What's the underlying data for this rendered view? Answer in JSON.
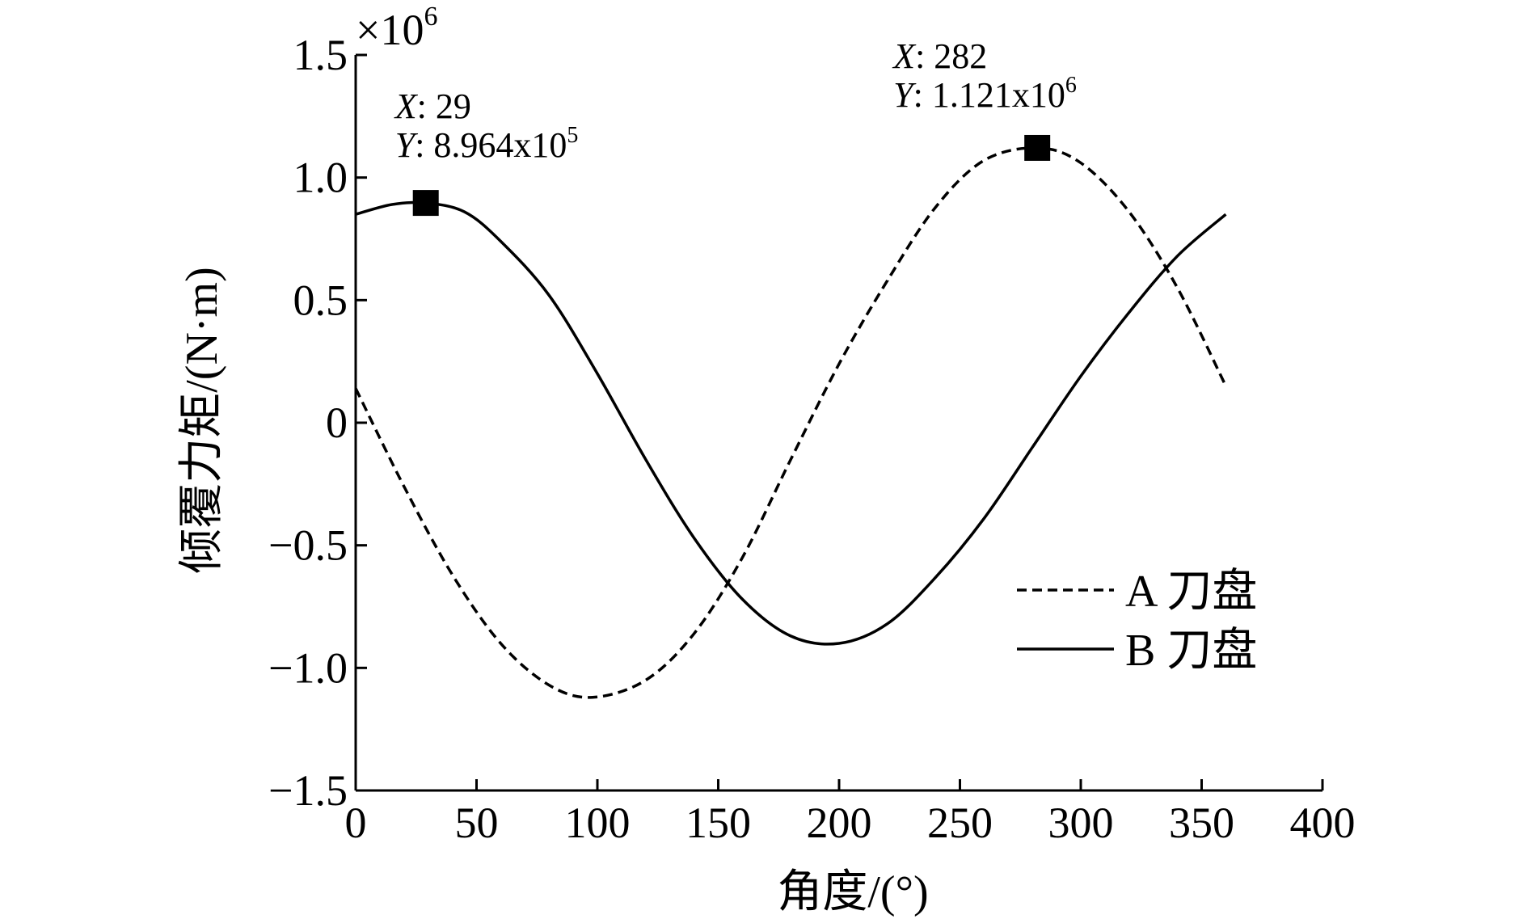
{
  "chart_data": {
    "type": "line",
    "xlabel": "角度/(°)",
    "ylabel": "倾覆力矩/(N·m)",
    "xlim": [
      0,
      400
    ],
    "ylim": [
      -1.5,
      1.5
    ],
    "y_multiplier": {
      "base": "×10",
      "exp": "6"
    },
    "x_ticks": [
      0,
      50,
      100,
      150,
      200,
      250,
      300,
      350,
      400
    ],
    "y_ticks": [
      -1.5,
      -1.0,
      -0.5,
      0,
      0.5,
      1.0,
      1.5
    ],
    "x_tick_labels": [
      "0",
      "50",
      "100",
      "150",
      "200",
      "250",
      "300",
      "350",
      "400"
    ],
    "y_tick_labels": [
      "−1.5",
      "−1.0",
      "−0.5",
      "0",
      "0.5",
      "1.0",
      "1.5"
    ],
    "grid": false,
    "legend_position": "right",
    "series": [
      {
        "name": "A 刀盘",
        "style": "dashed",
        "color": "#000000",
        "x": [
          0,
          20,
          40,
          60,
          80,
          98,
          120,
          140,
          160,
          180,
          200,
          220,
          240,
          260,
          282,
          300,
          320,
          340,
          360
        ],
        "y": [
          0.14,
          -0.26,
          -0.62,
          -0.9,
          -1.07,
          -1.12,
          -1.05,
          -0.86,
          -0.55,
          -0.15,
          0.24,
          0.58,
          0.88,
          1.07,
          1.121,
          1.06,
          0.86,
          0.55,
          0.15
        ]
      },
      {
        "name": "B 刀盘",
        "style": "solid",
        "color": "#000000",
        "x": [
          0,
          15,
          29,
          45,
          60,
          80,
          100,
          120,
          140,
          160,
          180,
          200,
          220,
          240,
          260,
          280,
          300,
          320,
          340,
          360
        ],
        "y": [
          0.85,
          0.89,
          0.8964,
          0.86,
          0.74,
          0.52,
          0.2,
          -0.15,
          -0.47,
          -0.72,
          -0.87,
          -0.9,
          -0.82,
          -0.63,
          -0.39,
          -0.1,
          0.19,
          0.45,
          0.68,
          0.85
        ]
      }
    ],
    "annotations": [
      {
        "x_prefix": "X",
        "x_text": ": 29",
        "y_prefix": "Y",
        "y_text": ": 8.964x10",
        "y_sup": "5",
        "x": 29,
        "y": 0.8964
      },
      {
        "x_prefix": "X",
        "x_text": ": 282",
        "y_prefix": "Y",
        "y_text": ": 1.121x10",
        "y_sup": "6",
        "x": 282,
        "y": 1.121
      }
    ]
  }
}
